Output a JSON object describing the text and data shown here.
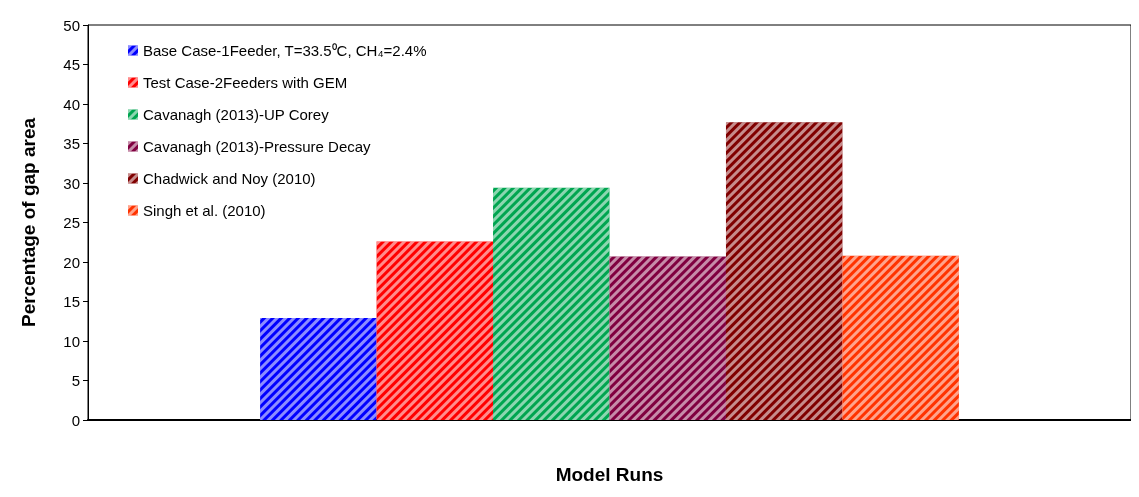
{
  "chart_data": {
    "type": "bar",
    "xlabel": "Model Runs",
    "ylabel": "Percentage of gap area",
    "categories": [
      null
    ],
    "series": [
      {
        "name": "Base Case-1Feeder, T=33.5⁰C, CH₄=2.4%",
        "color": "#0000ff",
        "values": [
          12.9
        ]
      },
      {
        "name": "Test Case-2Feeders with GEM",
        "color": "#ff0000",
        "values": [
          22.6
        ]
      },
      {
        "name": "Cavanagh (2013)-UP Corey",
        "color": "#00a550",
        "values": [
          29.4
        ]
      },
      {
        "name": "Cavanagh (2013)-Pressure Decay",
        "color": "#800040",
        "values": [
          20.7
        ]
      },
      {
        "name": "Chadwick and Noy (2010)",
        "color": "#800000",
        "values": [
          37.7
        ]
      },
      {
        "name": "Singh et al. (2010)",
        "color": "#ff3300",
        "values": [
          20.8
        ]
      }
    ],
    "ylim": [
      0,
      50
    ],
    "yticks": [
      0,
      5,
      10,
      15,
      20,
      25,
      30,
      35,
      40,
      45,
      50
    ],
    "grid": false,
    "legend": "top left"
  }
}
